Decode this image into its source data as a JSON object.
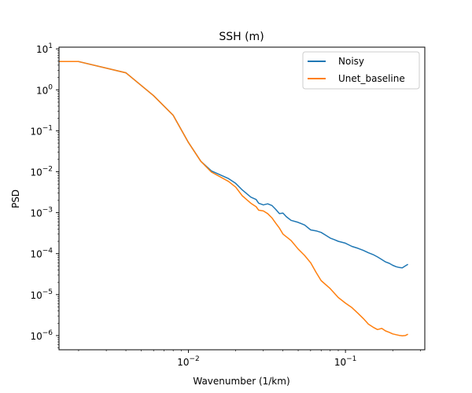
{
  "chart_data": {
    "type": "line",
    "title": "SSH (m)",
    "xlabel": "Wavenumber (1/km)",
    "ylabel": "PSD",
    "xscale": "log",
    "yscale": "log",
    "xlim": [
      0.0015,
      0.32
    ],
    "ylim": [
      4.5e-07,
      11
    ],
    "x_ticks": [
      {
        "value": 0.01,
        "label": "10",
        "exp": "−2"
      },
      {
        "value": 0.1,
        "label": "10",
        "exp": "−1"
      }
    ],
    "y_ticks": [
      {
        "value": 1e-06,
        "label": "10",
        "exp": "−6"
      },
      {
        "value": 1e-05,
        "label": "10",
        "exp": "−5"
      },
      {
        "value": 0.0001,
        "label": "10",
        "exp": "−4"
      },
      {
        "value": 0.001,
        "label": "10",
        "exp": "−3"
      },
      {
        "value": 0.01,
        "label": "10",
        "exp": "−2"
      },
      {
        "value": 0.1,
        "label": "10",
        "exp": "−1"
      },
      {
        "value": 1,
        "label": "10",
        "exp": "0"
      },
      {
        "value": 10,
        "label": "10",
        "exp": "1"
      }
    ],
    "legend_position": "top-right",
    "grid": false,
    "series": [
      {
        "name": "Noisy",
        "color": "#1f77b4",
        "points": [
          [
            0.0015,
            4.9
          ],
          [
            0.002,
            4.9
          ],
          [
            0.004,
            2.6
          ],
          [
            0.006,
            0.72
          ],
          [
            0.008,
            0.24
          ],
          [
            0.01,
            0.052
          ],
          [
            0.012,
            0.018
          ],
          [
            0.014,
            0.0105
          ],
          [
            0.018,
            0.0068
          ],
          [
            0.02,
            0.0052
          ],
          [
            0.022,
            0.0036
          ],
          [
            0.025,
            0.0024
          ],
          [
            0.027,
            0.0021
          ],
          [
            0.028,
            0.0017
          ],
          [
            0.03,
            0.00155
          ],
          [
            0.032,
            0.00165
          ],
          [
            0.034,
            0.0015
          ],
          [
            0.036,
            0.0012
          ],
          [
            0.038,
            0.00095
          ],
          [
            0.04,
            0.00098
          ],
          [
            0.042,
            0.0008
          ],
          [
            0.045,
            0.00065
          ],
          [
            0.05,
            0.00058
          ],
          [
            0.055,
            0.0005
          ],
          [
            0.06,
            0.00038
          ],
          [
            0.065,
            0.00036
          ],
          [
            0.07,
            0.00033
          ],
          [
            0.075,
            0.00028
          ],
          [
            0.08,
            0.00024
          ],
          [
            0.085,
            0.00022
          ],
          [
            0.09,
            0.0002
          ],
          [
            0.1,
            0.00018
          ],
          [
            0.11,
            0.00015
          ],
          [
            0.12,
            0.000135
          ],
          [
            0.13,
            0.00012
          ],
          [
            0.14,
            0.000105
          ],
          [
            0.15,
            9.5e-05
          ],
          [
            0.16,
            8.3e-05
          ],
          [
            0.17,
            7.2e-05
          ],
          [
            0.18,
            6.3e-05
          ],
          [
            0.19,
            5.8e-05
          ],
          [
            0.2,
            5.2e-05
          ],
          [
            0.21,
            4.8e-05
          ],
          [
            0.22,
            4.6e-05
          ],
          [
            0.23,
            4.5e-05
          ],
          [
            0.24,
            5e-05
          ],
          [
            0.25,
            5.5e-05
          ]
        ]
      },
      {
        "name": "Unet_baseline",
        "color": "#ff7f0e",
        "points": [
          [
            0.0015,
            4.9
          ],
          [
            0.002,
            4.9
          ],
          [
            0.004,
            2.6
          ],
          [
            0.006,
            0.72
          ],
          [
            0.008,
            0.24
          ],
          [
            0.01,
            0.052
          ],
          [
            0.012,
            0.018
          ],
          [
            0.014,
            0.0098
          ],
          [
            0.018,
            0.0058
          ],
          [
            0.02,
            0.0042
          ],
          [
            0.022,
            0.0026
          ],
          [
            0.025,
            0.0017
          ],
          [
            0.027,
            0.0014
          ],
          [
            0.028,
            0.00115
          ],
          [
            0.03,
            0.0011
          ],
          [
            0.032,
            0.00095
          ],
          [
            0.034,
            0.00075
          ],
          [
            0.036,
            0.00055
          ],
          [
            0.038,
            0.00042
          ],
          [
            0.04,
            0.0003
          ],
          [
            0.045,
            0.00021
          ],
          [
            0.05,
            0.00013
          ],
          [
            0.055,
            9e-05
          ],
          [
            0.06,
            6e-05
          ],
          [
            0.065,
            3.5e-05
          ],
          [
            0.07,
            2.2e-05
          ],
          [
            0.08,
            1.4e-05
          ],
          [
            0.09,
            8.5e-06
          ],
          [
            0.1,
            6.2e-06
          ],
          [
            0.11,
            4.8e-06
          ],
          [
            0.12,
            3.5e-06
          ],
          [
            0.13,
            2.6e-06
          ],
          [
            0.14,
            1.9e-06
          ],
          [
            0.15,
            1.6e-06
          ],
          [
            0.16,
            1.4e-06
          ],
          [
            0.17,
            1.5e-06
          ],
          [
            0.18,
            1.3e-06
          ],
          [
            0.19,
            1.2e-06
          ],
          [
            0.2,
            1.1e-06
          ],
          [
            0.21,
            1.05e-06
          ],
          [
            0.22,
            1.01e-06
          ],
          [
            0.23,
            9.9e-07
          ],
          [
            0.24,
            1e-06
          ],
          [
            0.25,
            1.08e-06
          ]
        ]
      }
    ]
  }
}
